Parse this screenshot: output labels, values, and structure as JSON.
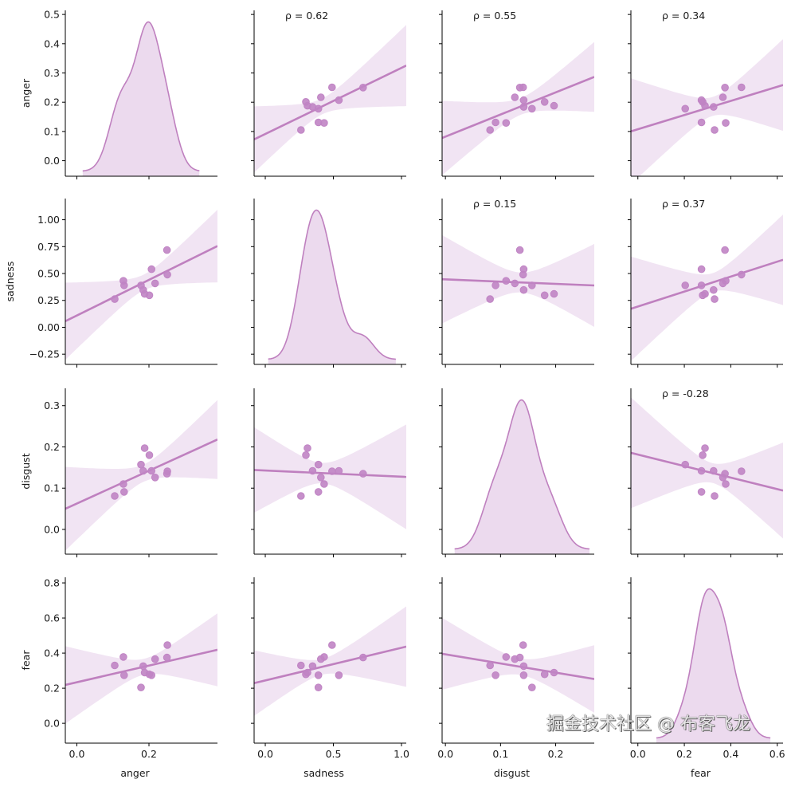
{
  "chart_data": {
    "type": "pairplot",
    "colors": {
      "marker": "#c084c4",
      "line": "#bf80bf",
      "band": "#f1e4f3",
      "kde_fill": "#ecdaee",
      "kde_line": "#bf80bf"
    },
    "grid": false,
    "variables": [
      {
        "name": "anger",
        "values": [
          0.105,
          0.129,
          0.131,
          0.178,
          0.184,
          0.188,
          0.201,
          0.207,
          0.217,
          0.25,
          0.251
        ],
        "xlim": [
          -0.032,
          0.39
        ],
        "ylim": [
          -0.053,
          0.514
        ],
        "xticks": [
          0.0,
          0.2
        ],
        "xtick_labels": [
          "0.0",
          "0.2"
        ],
        "yticks": [
          0.0,
          0.1,
          0.2,
          0.3,
          0.4,
          0.5
        ],
        "ytick_labels": [
          "0.0",
          "0.1",
          "0.2",
          "0.3",
          "0.4",
          "0.5"
        ]
      },
      {
        "name": "sadness",
        "values": [
          0.262,
          0.432,
          0.39,
          0.39,
          0.347,
          0.31,
          0.298,
          0.54,
          0.408,
          0.718,
          0.49
        ],
        "xlim": [
          -0.082,
          1.035
        ],
        "ylim": [
          -0.345,
          1.197
        ],
        "xticks": [
          0.0,
          0.5,
          1.0
        ],
        "xtick_labels": [
          "0.0",
          "0.5",
          "1.0"
        ],
        "yticks": [
          -0.25,
          0.0,
          0.25,
          0.5,
          0.75,
          1.0
        ],
        "ytick_labels": [
          "−0.25",
          "0.00",
          "0.25",
          "0.50",
          "0.75",
          "1.00"
        ]
      },
      {
        "name": "disgust",
        "values": [
          0.081,
          0.11,
          0.091,
          0.157,
          0.142,
          0.197,
          0.18,
          0.142,
          0.126,
          0.135,
          0.141
        ],
        "xlim": [
          -0.006,
          0.27
        ],
        "ylim": [
          -0.06,
          0.342
        ],
        "xticks": [
          0.0,
          0.1,
          0.2
        ],
        "xtick_labels": [
          "0.0",
          "0.1",
          "0.2"
        ],
        "yticks": [
          0.0,
          0.1,
          0.2,
          0.3
        ],
        "ytick_labels": [
          "0.0",
          "0.1",
          "0.2",
          "0.3"
        ]
      },
      {
        "name": "fear",
        "values": [
          0.33,
          0.378,
          0.274,
          0.204,
          0.326,
          0.289,
          0.279,
          0.274,
          0.366,
          0.375,
          0.446
        ],
        "xlim": [
          -0.03,
          0.625
        ],
        "ylim": [
          -0.113,
          0.832
        ],
        "xticks": [
          0.0,
          0.2,
          0.4,
          0.6
        ],
        "xtick_labels": [
          "0.0",
          "0.2",
          "0.4",
          "0.6"
        ],
        "yticks": [
          0.0,
          0.2,
          0.4,
          0.6,
          0.8
        ],
        "ytick_labels": [
          "0.0",
          "0.2",
          "0.4",
          "0.6",
          "0.8"
        ]
      }
    ],
    "annotations": [
      {
        "row": 0,
        "col": 1,
        "text": "ρ = 0.62"
      },
      {
        "row": 0,
        "col": 2,
        "text": "ρ = 0.55"
      },
      {
        "row": 0,
        "col": 3,
        "text": "ρ = 0.34"
      },
      {
        "row": 1,
        "col": 2,
        "text": "ρ = 0.15"
      },
      {
        "row": 1,
        "col": 3,
        "text": "ρ = 0.37"
      },
      {
        "row": 2,
        "col": 3,
        "text": "ρ = -0.28"
      }
    ]
  },
  "watermark": "掘金技术社区 @ 布客飞龙"
}
